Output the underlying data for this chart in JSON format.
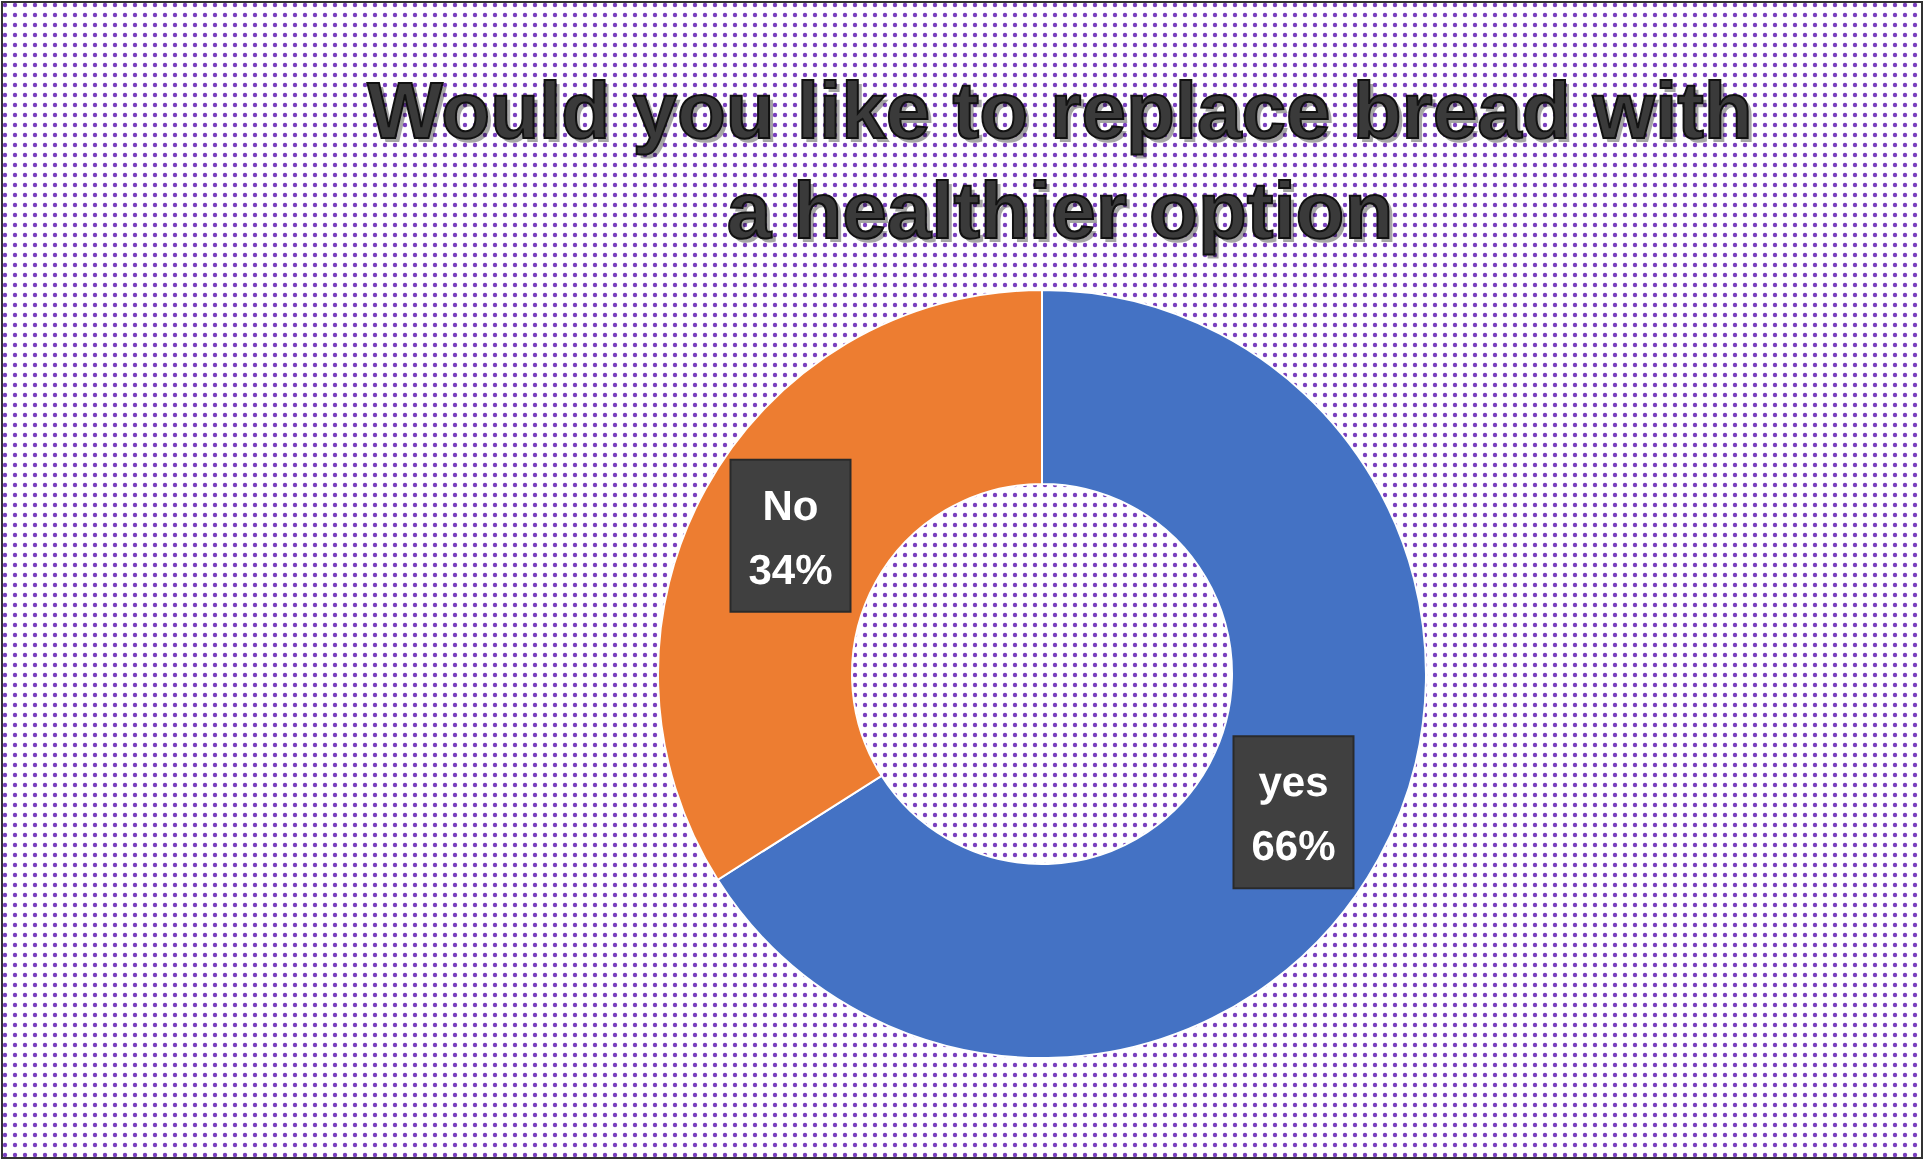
{
  "chart_data": {
    "type": "donut",
    "title": "Would you like to replace bread with a healthier option",
    "categories": [
      "yes",
      "No"
    ],
    "values": [
      66,
      34
    ],
    "colors": [
      "#4472c4",
      "#ed7d31"
    ],
    "value_labels": [
      "66%",
      "34%"
    ]
  }
}
